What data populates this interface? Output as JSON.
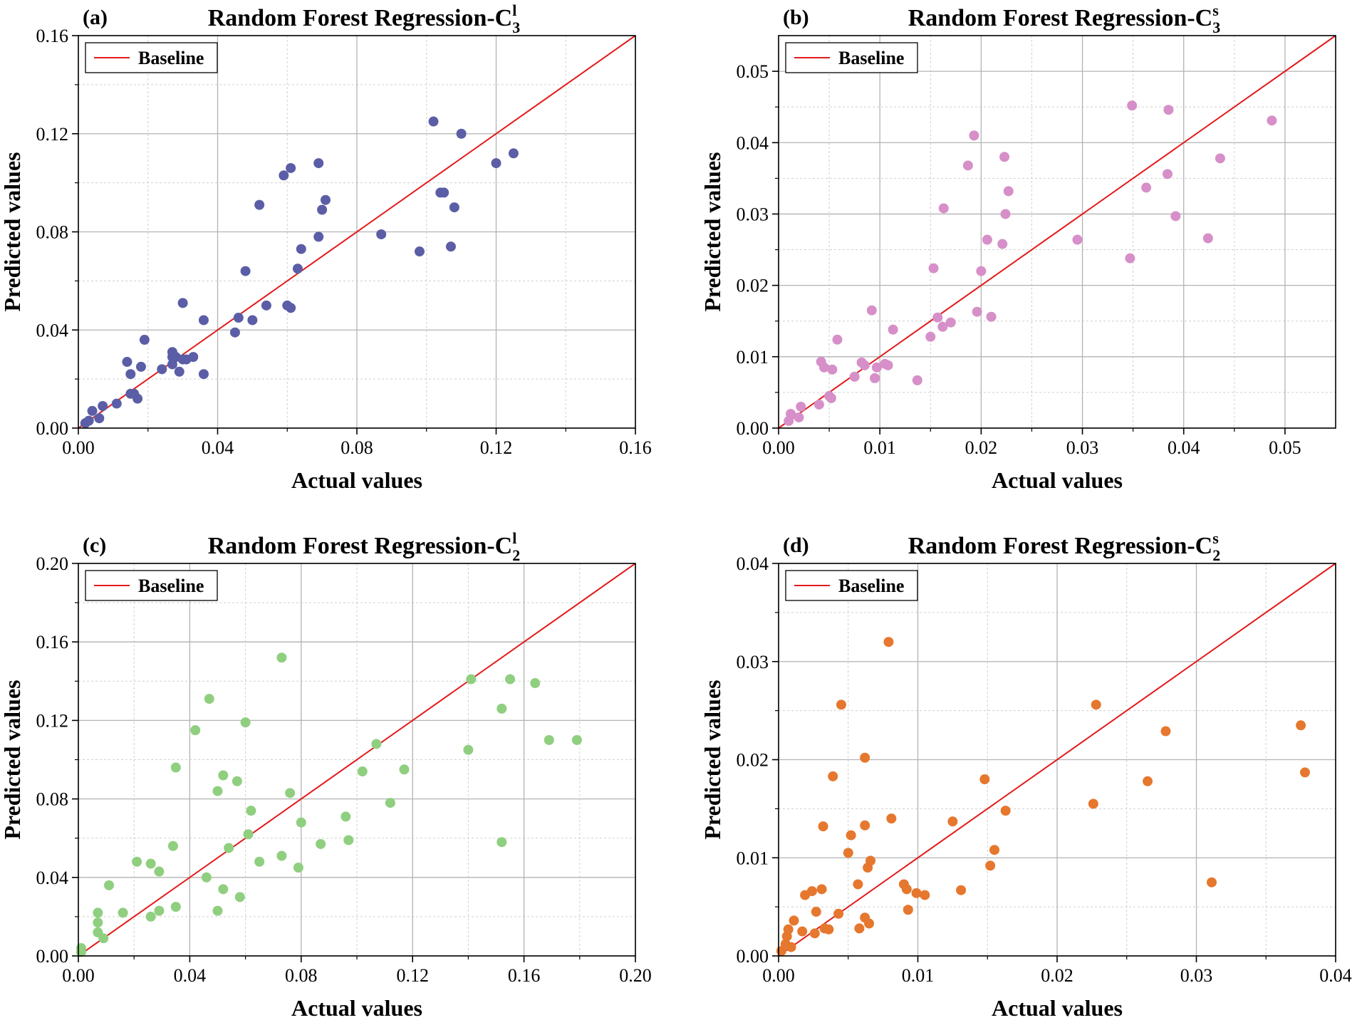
{
  "chart_data": [
    {
      "type": "scatter",
      "panel": "(a)",
      "title": "Random Forest Regression-C",
      "title_subscript": "3",
      "title_superscript": "l",
      "xlabel": "Actual values",
      "ylabel": "Predicted values",
      "xlim": [
        0,
        0.16
      ],
      "ylim": [
        0,
        0.16
      ],
      "xticks": [
        0.0,
        0.04,
        0.08,
        0.12,
        0.16
      ],
      "yticks": [
        0.0,
        0.04,
        0.08,
        0.12,
        0.16
      ],
      "xtick_labels": [
        "0.00",
        "0.04",
        "0.08",
        "0.12",
        "0.16"
      ],
      "ytick_labels": [
        "0.00",
        "0.04",
        "0.08",
        "0.12",
        "0.16"
      ],
      "grid": true,
      "legend": {
        "position": "top-left",
        "entries": [
          "Baseline"
        ]
      },
      "baseline_color": "#e31a1c",
      "point_color": "#5b5ea6",
      "points": [
        [
          0.002,
          0.002
        ],
        [
          0.003,
          0.003
        ],
        [
          0.004,
          0.007
        ],
        [
          0.006,
          0.004
        ],
        [
          0.007,
          0.009
        ],
        [
          0.011,
          0.01
        ],
        [
          0.014,
          0.027
        ],
        [
          0.015,
          0.022
        ],
        [
          0.015,
          0.014
        ],
        [
          0.016,
          0.014
        ],
        [
          0.017,
          0.012
        ],
        [
          0.018,
          0.025
        ],
        [
          0.019,
          0.036
        ],
        [
          0.024,
          0.024
        ],
        [
          0.027,
          0.031
        ],
        [
          0.027,
          0.029
        ],
        [
          0.027,
          0.026
        ],
        [
          0.028,
          0.029
        ],
        [
          0.029,
          0.023
        ],
        [
          0.03,
          0.051
        ],
        [
          0.03,
          0.028
        ],
        [
          0.031,
          0.028
        ],
        [
          0.033,
          0.029
        ],
        [
          0.036,
          0.044
        ],
        [
          0.036,
          0.022
        ],
        [
          0.045,
          0.039
        ],
        [
          0.046,
          0.045
        ],
        [
          0.048,
          0.064
        ],
        [
          0.05,
          0.044
        ],
        [
          0.052,
          0.091
        ],
        [
          0.054,
          0.05
        ],
        [
          0.059,
          0.103
        ],
        [
          0.06,
          0.05
        ],
        [
          0.061,
          0.106
        ],
        [
          0.061,
          0.049
        ],
        [
          0.063,
          0.065
        ],
        [
          0.064,
          0.073
        ],
        [
          0.069,
          0.078
        ],
        [
          0.069,
          0.108
        ],
        [
          0.07,
          0.089
        ],
        [
          0.071,
          0.093
        ],
        [
          0.087,
          0.079
        ],
        [
          0.098,
          0.072
        ],
        [
          0.102,
          0.125
        ],
        [
          0.104,
          0.096
        ],
        [
          0.105,
          0.096
        ],
        [
          0.107,
          0.074
        ],
        [
          0.108,
          0.09
        ],
        [
          0.11,
          0.12
        ],
        [
          0.12,
          0.108
        ],
        [
          0.125,
          0.112
        ]
      ]
    },
    {
      "type": "scatter",
      "panel": "(b)",
      "title": "Random Forest Regression-C",
      "title_subscript": "3",
      "title_superscript": "s",
      "xlabel": "Actual values",
      "ylabel": "Predicted values",
      "xlim": [
        0,
        0.055
      ],
      "ylim": [
        0,
        0.055
      ],
      "xticks": [
        0.0,
        0.01,
        0.02,
        0.03,
        0.04,
        0.05
      ],
      "yticks": [
        0.0,
        0.01,
        0.02,
        0.03,
        0.04,
        0.05
      ],
      "xtick_labels": [
        "0.00",
        "0.01",
        "0.02",
        "0.03",
        "0.04",
        "0.05"
      ],
      "ytick_labels": [
        "0.00",
        "0.01",
        "0.02",
        "0.03",
        "0.04",
        "0.05"
      ],
      "grid": true,
      "legend": {
        "position": "top-left",
        "entries": [
          "Baseline"
        ]
      },
      "baseline_color": "#e31a1c",
      "point_color": "#d68fc8",
      "points": [
        [
          0.001,
          0.001
        ],
        [
          0.0012,
          0.002
        ],
        [
          0.002,
          0.0015
        ],
        [
          0.0022,
          0.003
        ],
        [
          0.004,
          0.0033
        ],
        [
          0.0042,
          0.0093
        ],
        [
          0.0045,
          0.0085
        ],
        [
          0.005,
          0.0045
        ],
        [
          0.0052,
          0.0042
        ],
        [
          0.0053,
          0.0082
        ],
        [
          0.0058,
          0.0124
        ],
        [
          0.0075,
          0.0072
        ],
        [
          0.0082,
          0.0092
        ],
        [
          0.0085,
          0.0088
        ],
        [
          0.0092,
          0.0165
        ],
        [
          0.0095,
          0.007
        ],
        [
          0.0097,
          0.0085
        ],
        [
          0.0105,
          0.009
        ],
        [
          0.0108,
          0.0088
        ],
        [
          0.0113,
          0.0138
        ],
        [
          0.0137,
          0.0067
        ],
        [
          0.015,
          0.0128
        ],
        [
          0.0153,
          0.0224
        ],
        [
          0.0157,
          0.0155
        ],
        [
          0.0162,
          0.0142
        ],
        [
          0.0163,
          0.0308
        ],
        [
          0.017,
          0.0148
        ],
        [
          0.0187,
          0.0368
        ],
        [
          0.0193,
          0.041
        ],
        [
          0.0196,
          0.0163
        ],
        [
          0.02,
          0.022
        ],
        [
          0.0206,
          0.0264
        ],
        [
          0.021,
          0.0156
        ],
        [
          0.0221,
          0.0258
        ],
        [
          0.0223,
          0.038
        ],
        [
          0.0224,
          0.03
        ],
        [
          0.0227,
          0.0332
        ],
        [
          0.0295,
          0.0264
        ],
        [
          0.0347,
          0.0238
        ],
        [
          0.0349,
          0.0452
        ],
        [
          0.0363,
          0.0337
        ],
        [
          0.0384,
          0.0356
        ],
        [
          0.0385,
          0.0446
        ],
        [
          0.0392,
          0.0297
        ],
        [
          0.0424,
          0.0266
        ],
        [
          0.0436,
          0.0378
        ],
        [
          0.0487,
          0.0431
        ]
      ]
    },
    {
      "type": "scatter",
      "panel": "(c)",
      "title": "Random Forest Regression-C",
      "title_subscript": "2",
      "title_superscript": "l",
      "xlabel": "Actual values",
      "ylabel": "Predicted values",
      "xlim": [
        0,
        0.2
      ],
      "ylim": [
        0,
        0.2
      ],
      "xticks": [
        0.0,
        0.04,
        0.08,
        0.12,
        0.16,
        0.2
      ],
      "yticks": [
        0.0,
        0.04,
        0.08,
        0.12,
        0.16,
        0.2
      ],
      "xtick_labels": [
        "0.00",
        "0.04",
        "0.08",
        "0.12",
        "0.16",
        "0.20"
      ],
      "ytick_labels": [
        "0.00",
        "0.04",
        "0.08",
        "0.12",
        "0.16",
        "0.20"
      ],
      "grid": true,
      "legend": {
        "position": "top-left",
        "entries": [
          "Baseline"
        ]
      },
      "baseline_color": "#e31a1c",
      "point_color": "#8fcf7f",
      "points": [
        [
          0.001,
          0.002
        ],
        [
          0.001,
          0.004
        ],
        [
          0.007,
          0.022
        ],
        [
          0.007,
          0.017
        ],
        [
          0.007,
          0.012
        ],
        [
          0.009,
          0.009
        ],
        [
          0.011,
          0.036
        ],
        [
          0.016,
          0.022
        ],
        [
          0.021,
          0.048
        ],
        [
          0.026,
          0.02
        ],
        [
          0.026,
          0.047
        ],
        [
          0.029,
          0.043
        ],
        [
          0.029,
          0.023
        ],
        [
          0.034,
          0.056
        ],
        [
          0.035,
          0.096
        ],
        [
          0.035,
          0.025
        ],
        [
          0.042,
          0.115
        ],
        [
          0.046,
          0.04
        ],
        [
          0.047,
          0.131
        ],
        [
          0.05,
          0.084
        ],
        [
          0.05,
          0.023
        ],
        [
          0.052,
          0.034
        ],
        [
          0.052,
          0.092
        ],
        [
          0.054,
          0.055
        ],
        [
          0.057,
          0.089
        ],
        [
          0.058,
          0.03
        ],
        [
          0.06,
          0.119
        ],
        [
          0.061,
          0.062
        ],
        [
          0.062,
          0.074
        ],
        [
          0.065,
          0.048
        ],
        [
          0.073,
          0.152
        ],
        [
          0.073,
          0.051
        ],
        [
          0.076,
          0.083
        ],
        [
          0.079,
          0.045
        ],
        [
          0.08,
          0.068
        ],
        [
          0.087,
          0.057
        ],
        [
          0.096,
          0.071
        ],
        [
          0.097,
          0.059
        ],
        [
          0.102,
          0.094
        ],
        [
          0.107,
          0.108
        ],
        [
          0.112,
          0.078
        ],
        [
          0.117,
          0.095
        ],
        [
          0.14,
          0.105
        ],
        [
          0.141,
          0.141
        ],
        [
          0.152,
          0.126
        ],
        [
          0.152,
          0.058
        ],
        [
          0.155,
          0.141
        ],
        [
          0.164,
          0.139
        ],
        [
          0.169,
          0.11
        ],
        [
          0.179,
          0.11
        ]
      ]
    },
    {
      "type": "scatter",
      "panel": "(d)",
      "title": "Random Forest Regression-C",
      "title_subscript": "2",
      "title_superscript": "s",
      "xlabel": "Actual values",
      "ylabel": "Predicted values",
      "xlim": [
        0,
        0.04
      ],
      "ylim": [
        0,
        0.04
      ],
      "xticks": [
        0.0,
        0.01,
        0.02,
        0.03,
        0.04
      ],
      "yticks": [
        0.0,
        0.01,
        0.02,
        0.03,
        0.04
      ],
      "xtick_labels": [
        "0.00",
        "0.01",
        "0.02",
        "0.03",
        "0.04"
      ],
      "ytick_labels": [
        "0.00",
        "0.01",
        "0.02",
        "0.03",
        "0.04"
      ],
      "grid": true,
      "legend": {
        "position": "top-left",
        "entries": [
          "Baseline"
        ]
      },
      "baseline_color": "#e31a1c",
      "point_color": "#e6772e",
      "points": [
        [
          0.0002,
          0.0005
        ],
        [
          0.0005,
          0.0012
        ],
        [
          0.0006,
          0.002
        ],
        [
          0.0007,
          0.0027
        ],
        [
          0.0009,
          0.0009
        ],
        [
          0.0011,
          0.0036
        ],
        [
          0.0017,
          0.0025
        ],
        [
          0.0019,
          0.0062
        ],
        [
          0.0024,
          0.0066
        ],
        [
          0.0026,
          0.0023
        ],
        [
          0.0027,
          0.0045
        ],
        [
          0.0031,
          0.0068
        ],
        [
          0.0032,
          0.0132
        ],
        [
          0.0033,
          0.0028
        ],
        [
          0.0036,
          0.0027
        ],
        [
          0.0039,
          0.0183
        ],
        [
          0.0043,
          0.0043
        ],
        [
          0.0045,
          0.0256
        ],
        [
          0.005,
          0.0105
        ],
        [
          0.0052,
          0.0123
        ],
        [
          0.0057,
          0.0073
        ],
        [
          0.0058,
          0.0028
        ],
        [
          0.0062,
          0.0202
        ],
        [
          0.0062,
          0.0133
        ],
        [
          0.0062,
          0.0039
        ],
        [
          0.0064,
          0.009
        ],
        [
          0.0065,
          0.0033
        ],
        [
          0.0066,
          0.0097
        ],
        [
          0.0079,
          0.032
        ],
        [
          0.0081,
          0.014
        ],
        [
          0.009,
          0.0073
        ],
        [
          0.0092,
          0.0068
        ],
        [
          0.0093,
          0.0047
        ],
        [
          0.0099,
          0.0064
        ],
        [
          0.0105,
          0.0062
        ],
        [
          0.0125,
          0.0137
        ],
        [
          0.0131,
          0.0067
        ],
        [
          0.0148,
          0.018
        ],
        [
          0.0152,
          0.0092
        ],
        [
          0.0155,
          0.0108
        ],
        [
          0.0163,
          0.0148
        ],
        [
          0.0226,
          0.0155
        ],
        [
          0.0228,
          0.0256
        ],
        [
          0.0265,
          0.0178
        ],
        [
          0.0278,
          0.0229
        ],
        [
          0.0311,
          0.0075
        ],
        [
          0.0375,
          0.0235
        ],
        [
          0.0378,
          0.0187
        ]
      ]
    }
  ]
}
